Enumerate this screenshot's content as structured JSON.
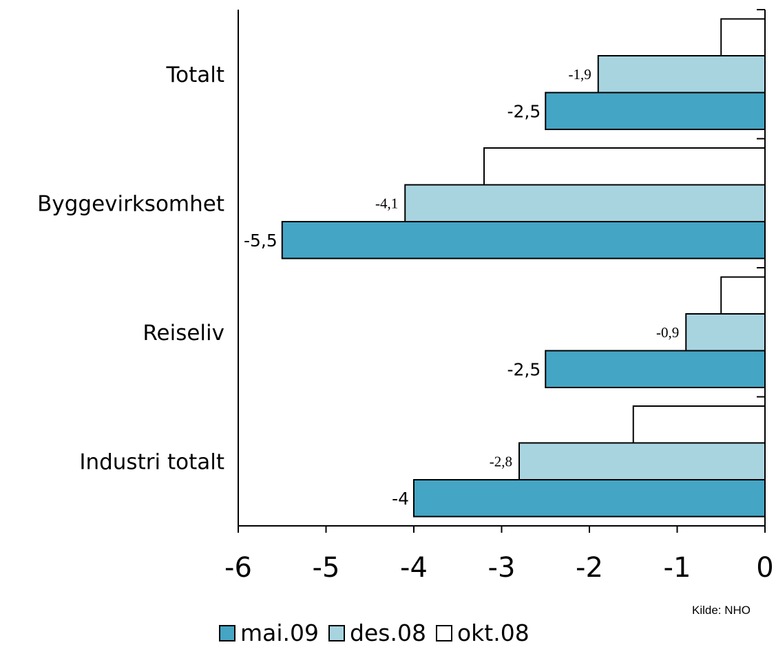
{
  "chart_data": {
    "type": "bar",
    "orientation": "horizontal",
    "categories": [
      "Totalt",
      "Byggevirksomhet",
      "Reiseliv",
      "Industri totalt"
    ],
    "series": [
      {
        "name": "mai.09",
        "values": [
          -2.5,
          -5.5,
          -2.5,
          -4
        ],
        "labels": [
          "-2,5",
          "-5,5",
          "-2,5",
          "-4"
        ],
        "color": "#45a5c4"
      },
      {
        "name": "des.08",
        "values": [
          -1.9,
          -4.1,
          -0.9,
          -2.8
        ],
        "labels": [
          "-1,9",
          "-4,1",
          "-0,9",
          "-2,8"
        ],
        "color": "#a8d4e0"
      },
      {
        "name": "okt.08",
        "values": [
          -0.5,
          -3.2,
          -0.5,
          -1.5
        ],
        "color": "#ffffff"
      }
    ],
    "xlim": [
      -6,
      0
    ],
    "xticks": [
      "-6",
      "-5",
      "-4",
      "-3",
      "-2",
      "-1",
      "0"
    ],
    "legend_position": "bottom",
    "source": "Kilde: NHO"
  }
}
